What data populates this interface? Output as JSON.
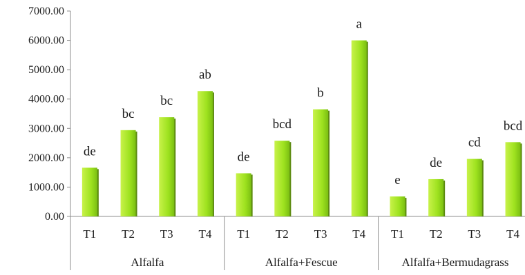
{
  "chart_data": {
    "type": "bar",
    "title": "",
    "xlabel": "",
    "ylabel": "",
    "ylim": [
      0,
      7000
    ],
    "yticks": [
      "0.00",
      "1000.00",
      "2000.00",
      "3000.00",
      "4000.00",
      "5000.00",
      "6000.00",
      "7000.00"
    ],
    "grid": false,
    "legend": "none",
    "bar_color": "#9ee21f",
    "bar_highlight": "#c8f24a",
    "bar_shadow": "#5c8a10",
    "groups": [
      {
        "name": "Alfalfa",
        "categories": [
          "T1",
          "T2",
          "T3",
          "T4"
        ],
        "values": [
          1660,
          2940,
          3380,
          4270
        ],
        "labels": [
          "de",
          "bc",
          "bc",
          "ab"
        ]
      },
      {
        "name": "Alfalfa+Fescue",
        "categories": [
          "T1",
          "T2",
          "T3",
          "T4"
        ],
        "values": [
          1470,
          2580,
          3650,
          6000
        ],
        "labels": [
          "de",
          "bcd",
          "b",
          "a"
        ]
      },
      {
        "name": "Alfalfa+Bermudagrass",
        "categories": [
          "T1",
          "T2",
          "T3",
          "T4"
        ],
        "values": [
          680,
          1270,
          1960,
          2530
        ],
        "labels": [
          "e",
          "de",
          "cd",
          "bcd"
        ]
      }
    ]
  }
}
